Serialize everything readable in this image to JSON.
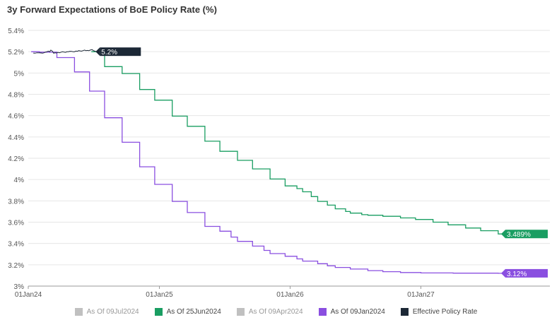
{
  "chart_data": {
    "type": "line",
    "title": "3y Forward Expectations of BoE Policy Rate (%)",
    "xlabel": "",
    "ylabel": "",
    "ylim": [
      3.0,
      5.4
    ],
    "y_ticks": [
      "3%",
      "3.2%",
      "3.4%",
      "3.6%",
      "3.8%",
      "4%",
      "4.2%",
      "4.4%",
      "4.6%",
      "4.8%",
      "5%",
      "5.2%",
      "5.4%"
    ],
    "x_ticks": [
      "01Jan24",
      "01Jan25",
      "01Jan26",
      "01Jan27"
    ],
    "x_range": [
      "2024-01-01",
      "2027-08-15"
    ],
    "grid": true,
    "legend_position": "bottom",
    "series": [
      {
        "name": "As Of 09Jul2024",
        "color": "#c0c0c0",
        "visible": false,
        "x": [],
        "y": []
      },
      {
        "name": "As Of 25Jun2024",
        "color": "#1a9e62",
        "visible": true,
        "end_label": "3.489%",
        "x": [
          "2024-06-25",
          "2024-08-01",
          "2024-09-19",
          "2024-11-07",
          "2024-12-19",
          "2025-02-06",
          "2025-03-20",
          "2025-05-08",
          "2025-06-19",
          "2025-08-07",
          "2025-09-18",
          "2025-11-06",
          "2025-12-18",
          "2026-01-20",
          "2026-02-05",
          "2026-03-01",
          "2026-03-19",
          "2026-04-15",
          "2026-05-07",
          "2026-06-05",
          "2026-06-18",
          "2026-07-20",
          "2026-08-06",
          "2026-09-17",
          "2026-11-05",
          "2026-12-17",
          "2027-02-04",
          "2027-03-18",
          "2027-05-06",
          "2027-06-17",
          "2027-08-05"
        ],
        "y": [
          5.2,
          5.06,
          4.995,
          4.845,
          4.745,
          4.595,
          4.5,
          4.36,
          4.265,
          4.18,
          4.1,
          4.005,
          3.94,
          3.915,
          3.885,
          3.84,
          3.795,
          3.76,
          3.725,
          3.7,
          3.685,
          3.67,
          3.665,
          3.655,
          3.64,
          3.625,
          3.6,
          3.575,
          3.545,
          3.52,
          3.489
        ]
      },
      {
        "name": "As Of 09Apr2024",
        "color": "#c0c0c0",
        "visible": false,
        "x": [],
        "y": []
      },
      {
        "name": "As Of 09Jan2024",
        "color": "#8a4fe0",
        "visible": true,
        "end_label": "3.12%",
        "x": [
          "2024-01-09",
          "2024-02-01",
          "2024-03-21",
          "2024-05-09",
          "2024-06-20",
          "2024-08-01",
          "2024-09-19",
          "2024-11-07",
          "2024-12-19",
          "2025-02-06",
          "2025-03-20",
          "2025-05-08",
          "2025-06-19",
          "2025-07-20",
          "2025-08-07",
          "2025-09-18",
          "2025-10-20",
          "2025-11-06",
          "2025-12-18",
          "2026-01-20",
          "2026-02-05",
          "2026-03-19",
          "2026-04-15",
          "2026-05-07",
          "2026-06-18",
          "2026-08-06",
          "2026-09-17",
          "2026-11-05",
          "2027-01-01",
          "2027-04-01",
          "2027-08-05"
        ],
        "y": [
          5.2,
          5.195,
          5.145,
          5.01,
          4.83,
          4.58,
          4.35,
          4.12,
          3.955,
          3.795,
          3.69,
          3.56,
          3.515,
          3.46,
          3.42,
          3.375,
          3.335,
          3.305,
          3.28,
          3.255,
          3.235,
          3.21,
          3.19,
          3.175,
          3.16,
          3.145,
          3.135,
          3.127,
          3.123,
          3.121,
          3.12
        ]
      },
      {
        "name": "Effective Policy Rate",
        "color": "#1c2836",
        "visible": true,
        "end_label": "5.2%",
        "x": [
          "2024-01-15",
          "2024-01-20",
          "2024-01-25",
          "2024-02-01",
          "2024-02-06",
          "2024-02-10",
          "2024-02-14",
          "2024-02-18",
          "2024-02-22",
          "2024-02-26",
          "2024-03-01",
          "2024-03-04",
          "2024-03-08",
          "2024-03-12",
          "2024-03-16",
          "2024-03-20",
          "2024-03-24",
          "2024-03-28",
          "2024-04-02",
          "2024-04-06",
          "2024-04-10",
          "2024-04-14",
          "2024-04-18",
          "2024-04-22",
          "2024-04-26",
          "2024-05-01",
          "2024-05-05",
          "2024-05-09",
          "2024-05-13",
          "2024-05-17",
          "2024-05-21",
          "2024-05-25",
          "2024-05-29",
          "2024-06-02",
          "2024-06-06",
          "2024-06-10",
          "2024-06-14",
          "2024-06-18",
          "2024-06-22",
          "2024-06-27",
          "2024-07-01",
          "2024-07-05",
          "2024-07-09"
        ],
        "y": [
          5.187,
          5.186,
          5.19,
          5.19,
          5.188,
          5.186,
          5.19,
          5.195,
          5.2,
          5.205,
          5.2,
          5.215,
          5.205,
          5.185,
          5.19,
          5.188,
          5.193,
          5.19,
          5.196,
          5.199,
          5.196,
          5.194,
          5.199,
          5.2,
          5.204,
          5.203,
          5.2,
          5.2,
          5.206,
          5.204,
          5.21,
          5.207,
          5.205,
          5.21,
          5.215,
          5.21,
          5.212,
          5.21,
          5.215,
          5.22,
          5.21,
          5.205,
          5.2
        ]
      }
    ]
  }
}
